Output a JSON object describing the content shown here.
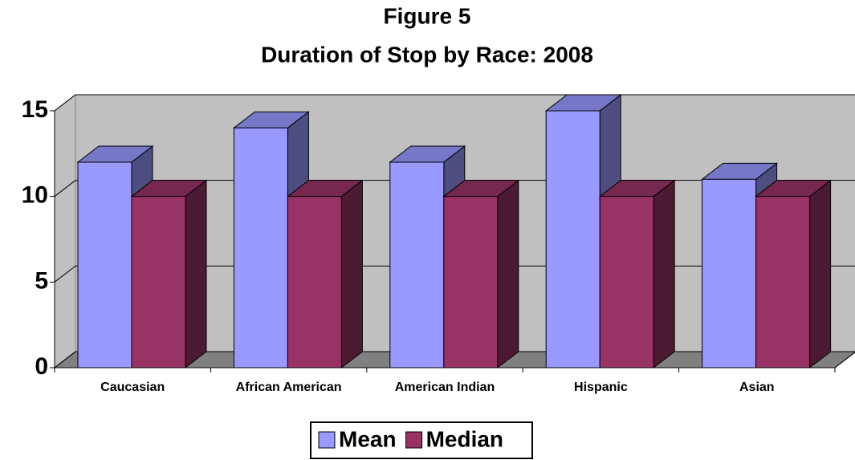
{
  "chart_data": {
    "type": "bar3d",
    "title": "Figure 5",
    "subtitle": "Duration of Stop by Race: 2008",
    "categories": [
      "Caucasian",
      "African American",
      "American Indian",
      "Hispanic",
      "Asian"
    ],
    "series": [
      {
        "name": "Mean",
        "color": "#9999ff",
        "values": [
          12,
          14,
          12,
          15,
          11
        ]
      },
      {
        "name": "Median",
        "color": "#993366",
        "values": [
          10,
          10,
          10,
          10,
          10
        ]
      }
    ],
    "ylim": [
      0,
      15
    ],
    "yticks": [
      0,
      5,
      10,
      15
    ],
    "grid": true,
    "legend": "bottom"
  }
}
